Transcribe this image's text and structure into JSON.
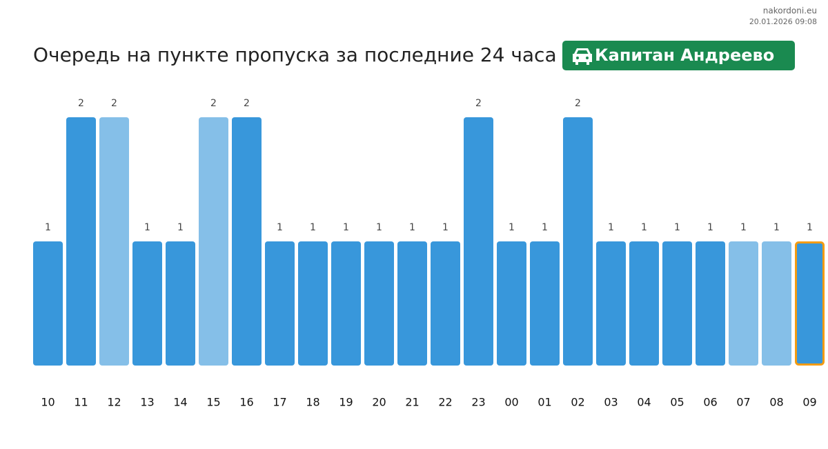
{
  "chart_data": {
    "type": "bar",
    "title": "Очередь на пункте пропуска за последние 24 часа",
    "badge": "Капитан Андреево",
    "source": "nakordoni.eu",
    "timestamp": "20.01.2026 09:08",
    "categories": [
      "10",
      "11",
      "12",
      "13",
      "14",
      "15",
      "16",
      "17",
      "18",
      "19",
      "20",
      "21",
      "22",
      "23",
      "00",
      "01",
      "02",
      "03",
      "04",
      "05",
      "06",
      "07",
      "08",
      "09"
    ],
    "values": [
      1,
      2,
      2,
      1,
      1,
      2,
      2,
      1,
      1,
      1,
      1,
      1,
      1,
      2,
      1,
      1,
      2,
      1,
      1,
      1,
      1,
      1,
      1,
      1
    ],
    "colors": [
      "#3897db",
      "#3897db",
      "#85bfe8",
      "#3897db",
      "#3897db",
      "#85bfe8",
      "#3897db",
      "#3897db",
      "#3897db",
      "#3897db",
      "#3897db",
      "#3897db",
      "#3897db",
      "#3897db",
      "#3897db",
      "#3897db",
      "#3897db",
      "#3897db",
      "#3897db",
      "#3897db",
      "#3897db",
      "#85bfe8",
      "#85bfe8",
      "#3897db"
    ],
    "edgecolors": [
      null,
      null,
      null,
      null,
      null,
      null,
      null,
      null,
      null,
      null,
      null,
      null,
      null,
      null,
      null,
      null,
      null,
      null,
      null,
      null,
      null,
      null,
      null,
      "#f39c12"
    ],
    "badge_color": "#1a8a50",
    "ylim": [
      0,
      2
    ]
  }
}
